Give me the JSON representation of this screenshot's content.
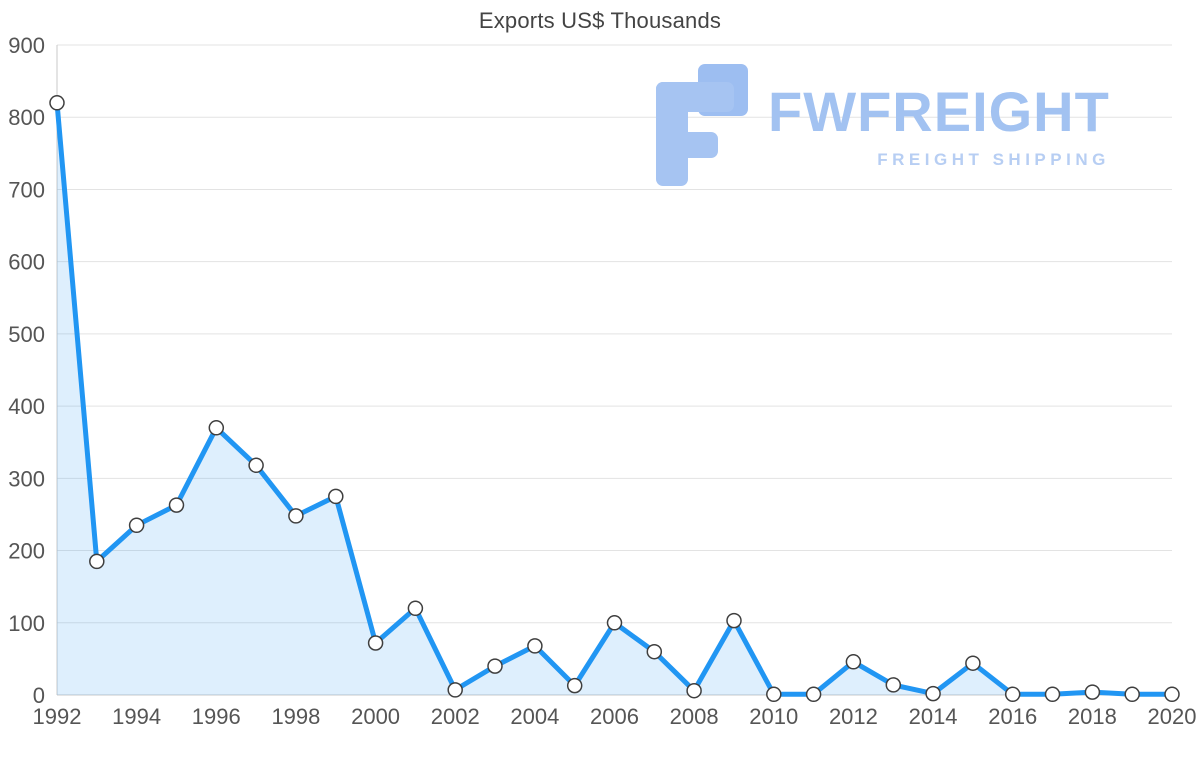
{
  "chart_data": {
    "type": "area",
    "title": "Exports US$ Thousands",
    "xlabel": "",
    "ylabel": "",
    "x": [
      1992,
      1993,
      1994,
      1995,
      1996,
      1997,
      1998,
      1999,
      2000,
      2001,
      2002,
      2003,
      2004,
      2005,
      2006,
      2007,
      2008,
      2009,
      2010,
      2011,
      2012,
      2013,
      2014,
      2015,
      2016,
      2017,
      2018,
      2019,
      2020
    ],
    "values": [
      820,
      185,
      235,
      263,
      370,
      318,
      248,
      275,
      72,
      120,
      7,
      40,
      68,
      13,
      100,
      60,
      6,
      103,
      1,
      1,
      46,
      14,
      2,
      44,
      1,
      1,
      4,
      1,
      1
    ],
    "ylim": [
      0,
      900
    ],
    "ytick_interval": 100,
    "xtick_interval": 2,
    "grid": true,
    "legend": "none",
    "line_color": "#2196f3",
    "fill_color": "#2196f326",
    "marker_fill": "#ffffff",
    "marker_stroke": "#3f3f3f"
  },
  "watermark": {
    "brand": "FWFREIGHT",
    "tagline": "FREIGHT SHIPPING",
    "color": "#a2c2f1"
  }
}
